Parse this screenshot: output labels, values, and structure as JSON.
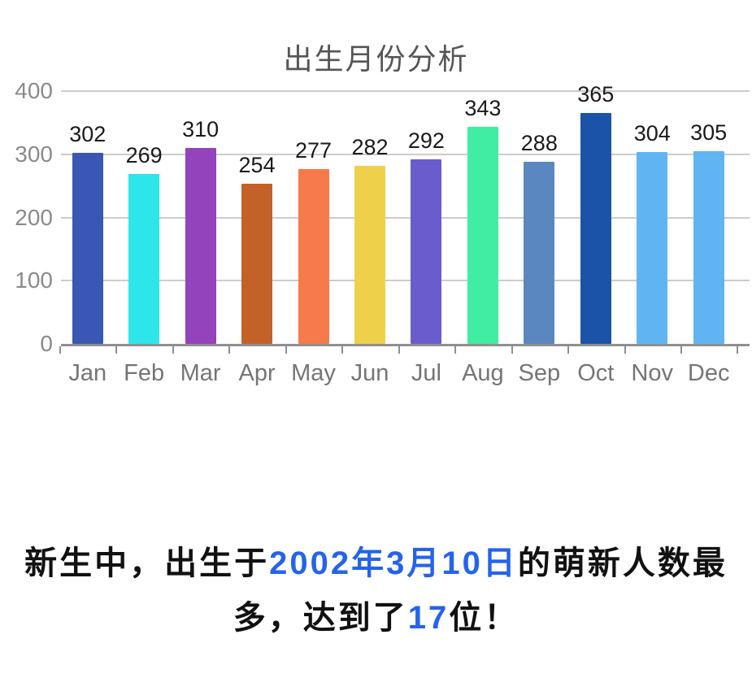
{
  "chart_data": {
    "type": "bar",
    "title": "出生月份分析",
    "categories": [
      "Jan",
      "Feb",
      "Mar",
      "Apr",
      "May",
      "Jun",
      "Jul",
      "Aug",
      "Sep",
      "Oct",
      "Nov",
      "Dec"
    ],
    "values": [
      302,
      269,
      310,
      254,
      277,
      282,
      292,
      343,
      288,
      365,
      304,
      305
    ],
    "bar_colors": [
      "#3a57b4",
      "#2ee6ea",
      "#9343bb",
      "#c26229",
      "#f67a4b",
      "#efd04b",
      "#6a5ccd",
      "#40eda2",
      "#5b87c0",
      "#1b53a8",
      "#61b4f2",
      "#61b4f2"
    ],
    "xlabel": "",
    "ylabel": "",
    "ylim": [
      0,
      400
    ],
    "yticks": [
      0,
      100,
      200,
      300,
      400
    ],
    "grid": true,
    "legend": "none"
  },
  "caption": {
    "lines": [
      {
        "segments": [
          {
            "text": "新生中，出生于",
            "style": "normal"
          },
          {
            "text": "2002年3月10日",
            "style": "highlight"
          },
          {
            "text": "的萌新人数最",
            "style": "normal"
          }
        ]
      },
      {
        "segments": [
          {
            "text": "多，达到了",
            "style": "normal"
          },
          {
            "text": "17",
            "style": "highlight"
          },
          {
            "text": "位！",
            "style": "normal"
          }
        ]
      }
    ]
  },
  "colors": {
    "highlight": "#2563eb",
    "body_text": "#111111",
    "title_text": "#555555",
    "axis_text": "#8a8a8a",
    "month_text": "#757575",
    "value_text": "#1a1a1a",
    "grid": "#cccccc",
    "axis_line": "#8f8f8f",
    "background": "#ffffff"
  }
}
